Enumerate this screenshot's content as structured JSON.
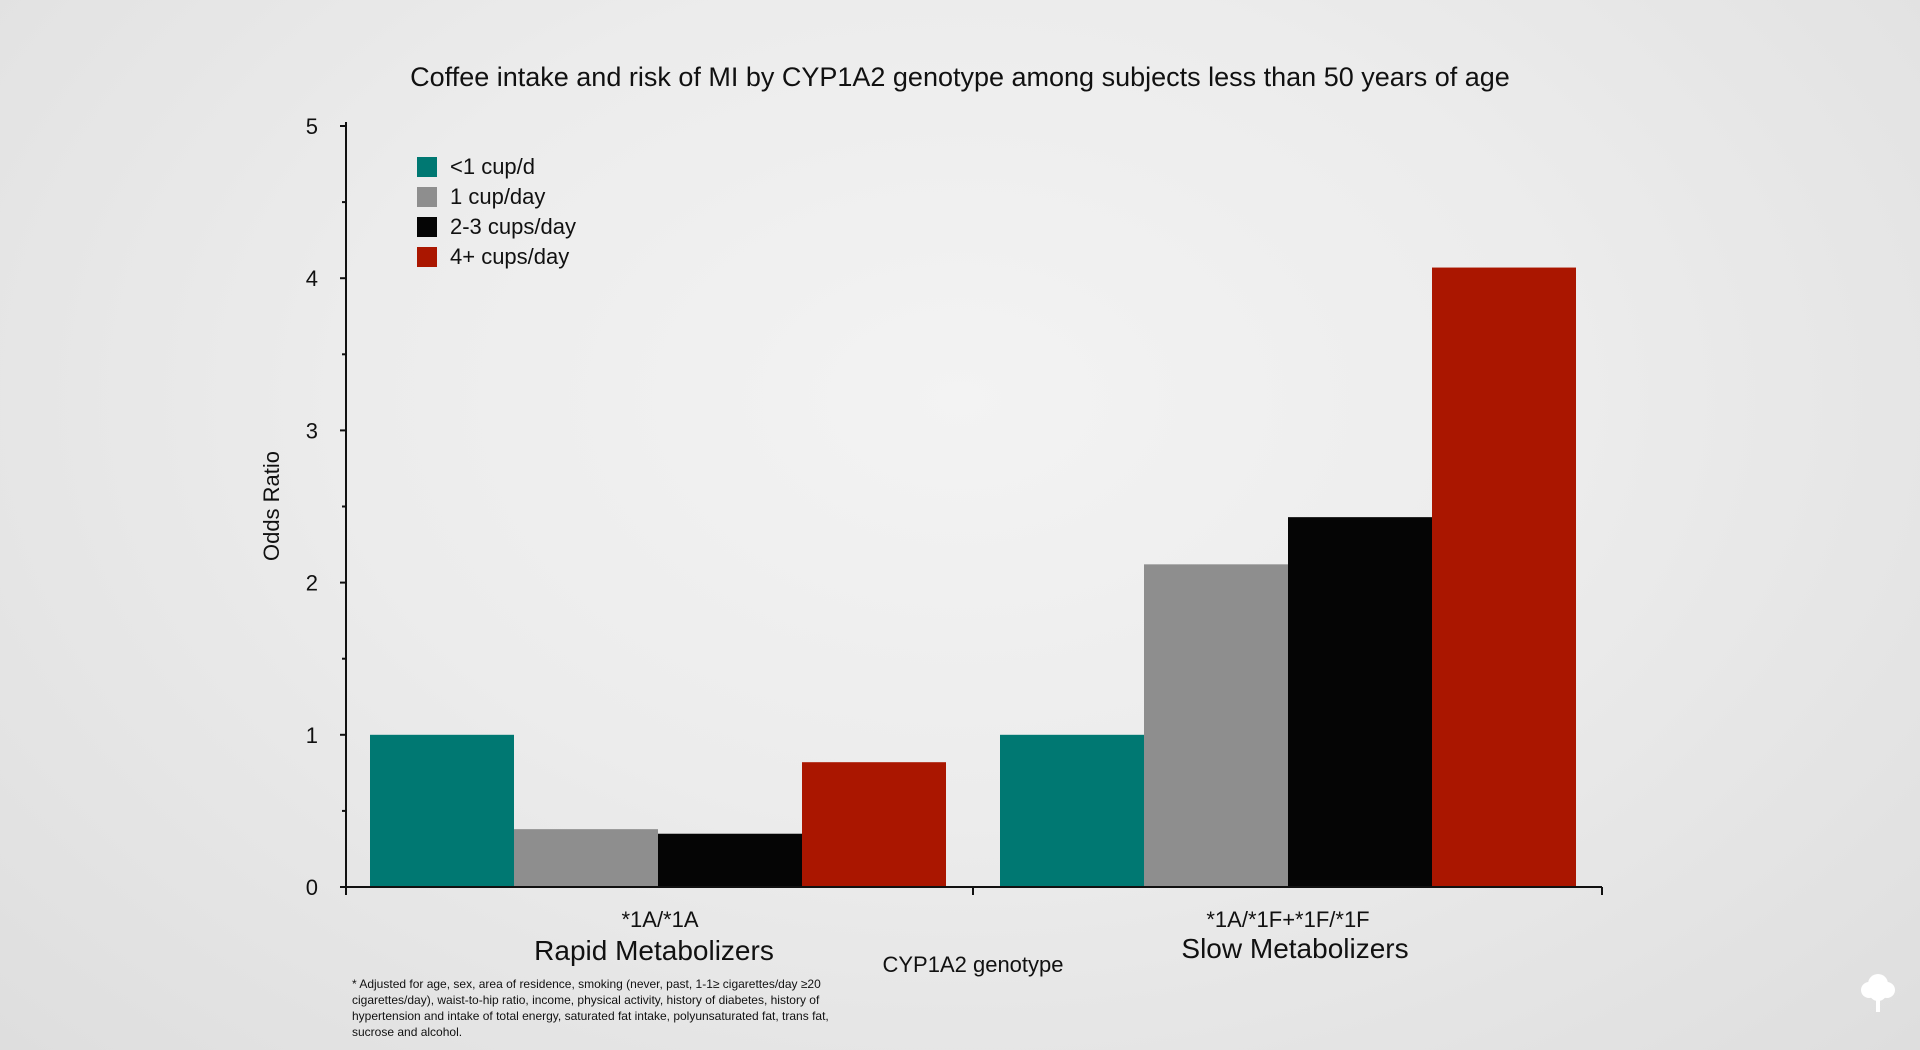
{
  "chart_data": {
    "type": "bar",
    "title": "Coffee intake and risk of MI by CYP1A2 genotype among subjects less than 50 years of age",
    "xlabel": "CYP1A2 genotype",
    "ylabel": "Odds Ratio",
    "ylim": [
      0,
      5
    ],
    "yticks": [
      "0",
      "1",
      "2",
      "3",
      "4",
      "5"
    ],
    "grid": false,
    "legend_position": "top-left",
    "categories": [
      {
        "code": "*1A/*1A",
        "name": "Rapid Metabolizers"
      },
      {
        "code": "*1A/*1F+*1F/*1F",
        "name": "Slow Metabolizers"
      }
    ],
    "series": [
      {
        "name": "<1 cup/d",
        "color": "#007872",
        "values": [
          1.0,
          1.0
        ]
      },
      {
        "name": "1 cup/day",
        "color": "#8e8e8e",
        "values": [
          0.38,
          2.12
        ]
      },
      {
        "name": "2-3 cups/day",
        "color": "#050505",
        "values": [
          0.35,
          2.43
        ]
      },
      {
        "name": "4+ cups/day",
        "color": "#aa1600",
        "values": [
          0.82,
          4.07
        ]
      }
    ]
  },
  "footnote": "* Adjusted for age, sex, area of residence, smoking (never, past, 1-1≥ cigarettes/day ≥20 cigarettes/day), waist-to-hip ratio, income, physical activity, history of diabetes, history of hypertension and intake of total energy, saturated fat intake, polyunsaturated fat, trans fat, sucrose and alcohol.",
  "watermark_icon": "tree-icon"
}
